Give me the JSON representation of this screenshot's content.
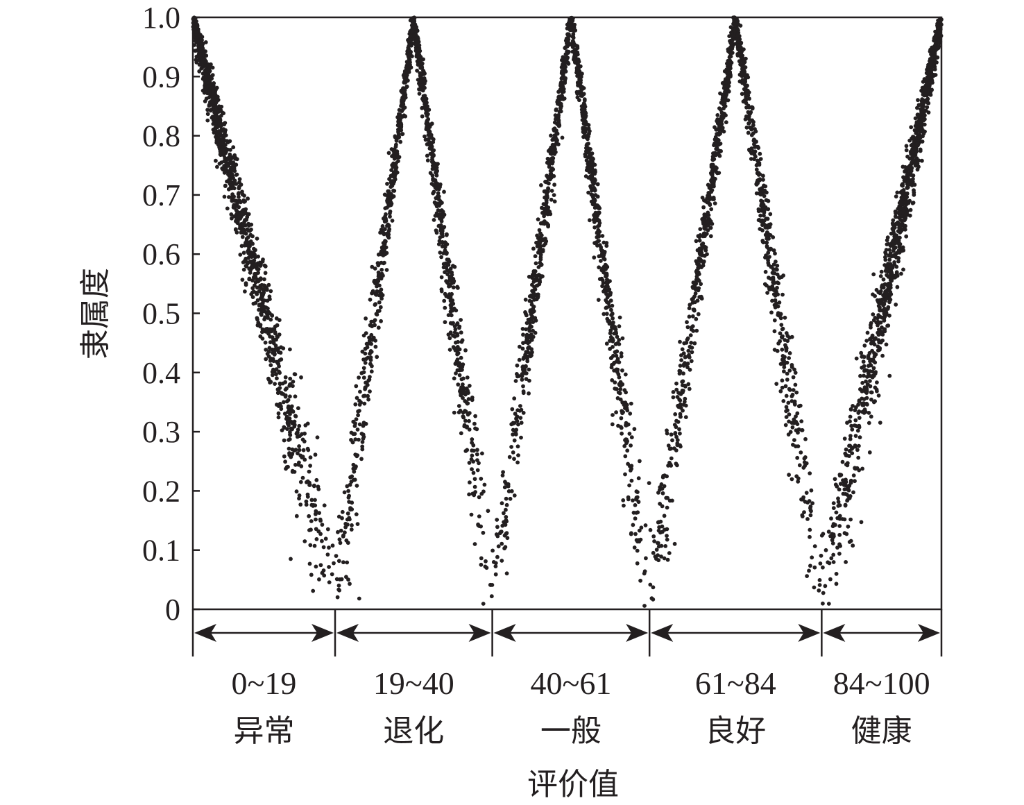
{
  "chart_data": {
    "type": "scatter",
    "xlabel": "评价值",
    "ylabel": "隶属度",
    "xlim": [
      0,
      100
    ],
    "ylim": [
      0,
      1.0
    ],
    "y_ticks": [
      "0",
      "0.1",
      "0.2",
      "0.3",
      "0.4",
      "0.5",
      "0.6",
      "0.7",
      "0.8",
      "0.9",
      "1.0"
    ],
    "grid": false,
    "marker_color": "#231f20",
    "grades": [
      {
        "range": "0~19",
        "name": "异常",
        "from": 0,
        "to": 19
      },
      {
        "range": "19~40",
        "name": "退化",
        "from": 19,
        "to": 40
      },
      {
        "range": "40~61",
        "name": "一般",
        "from": 40,
        "to": 61
      },
      {
        "range": "61~84",
        "name": "良好",
        "from": 61,
        "to": 84
      },
      {
        "range": "84~100",
        "name": "健康",
        "from": 84,
        "to": 100
      }
    ],
    "series": [
      {
        "peak_x": 0,
        "left_zero_x": 0,
        "right_zero_x": 19
      },
      {
        "peak_x": 29.5,
        "left_zero_x": 19,
        "right_zero_x": 40
      },
      {
        "peak_x": 50.5,
        "left_zero_x": 40,
        "right_zero_x": 61
      },
      {
        "peak_x": 72.5,
        "left_zero_x": 61,
        "right_zero_x": 84
      },
      {
        "peak_x": 100,
        "left_zero_x": 84,
        "right_zero_x": 100
      }
    ]
  }
}
